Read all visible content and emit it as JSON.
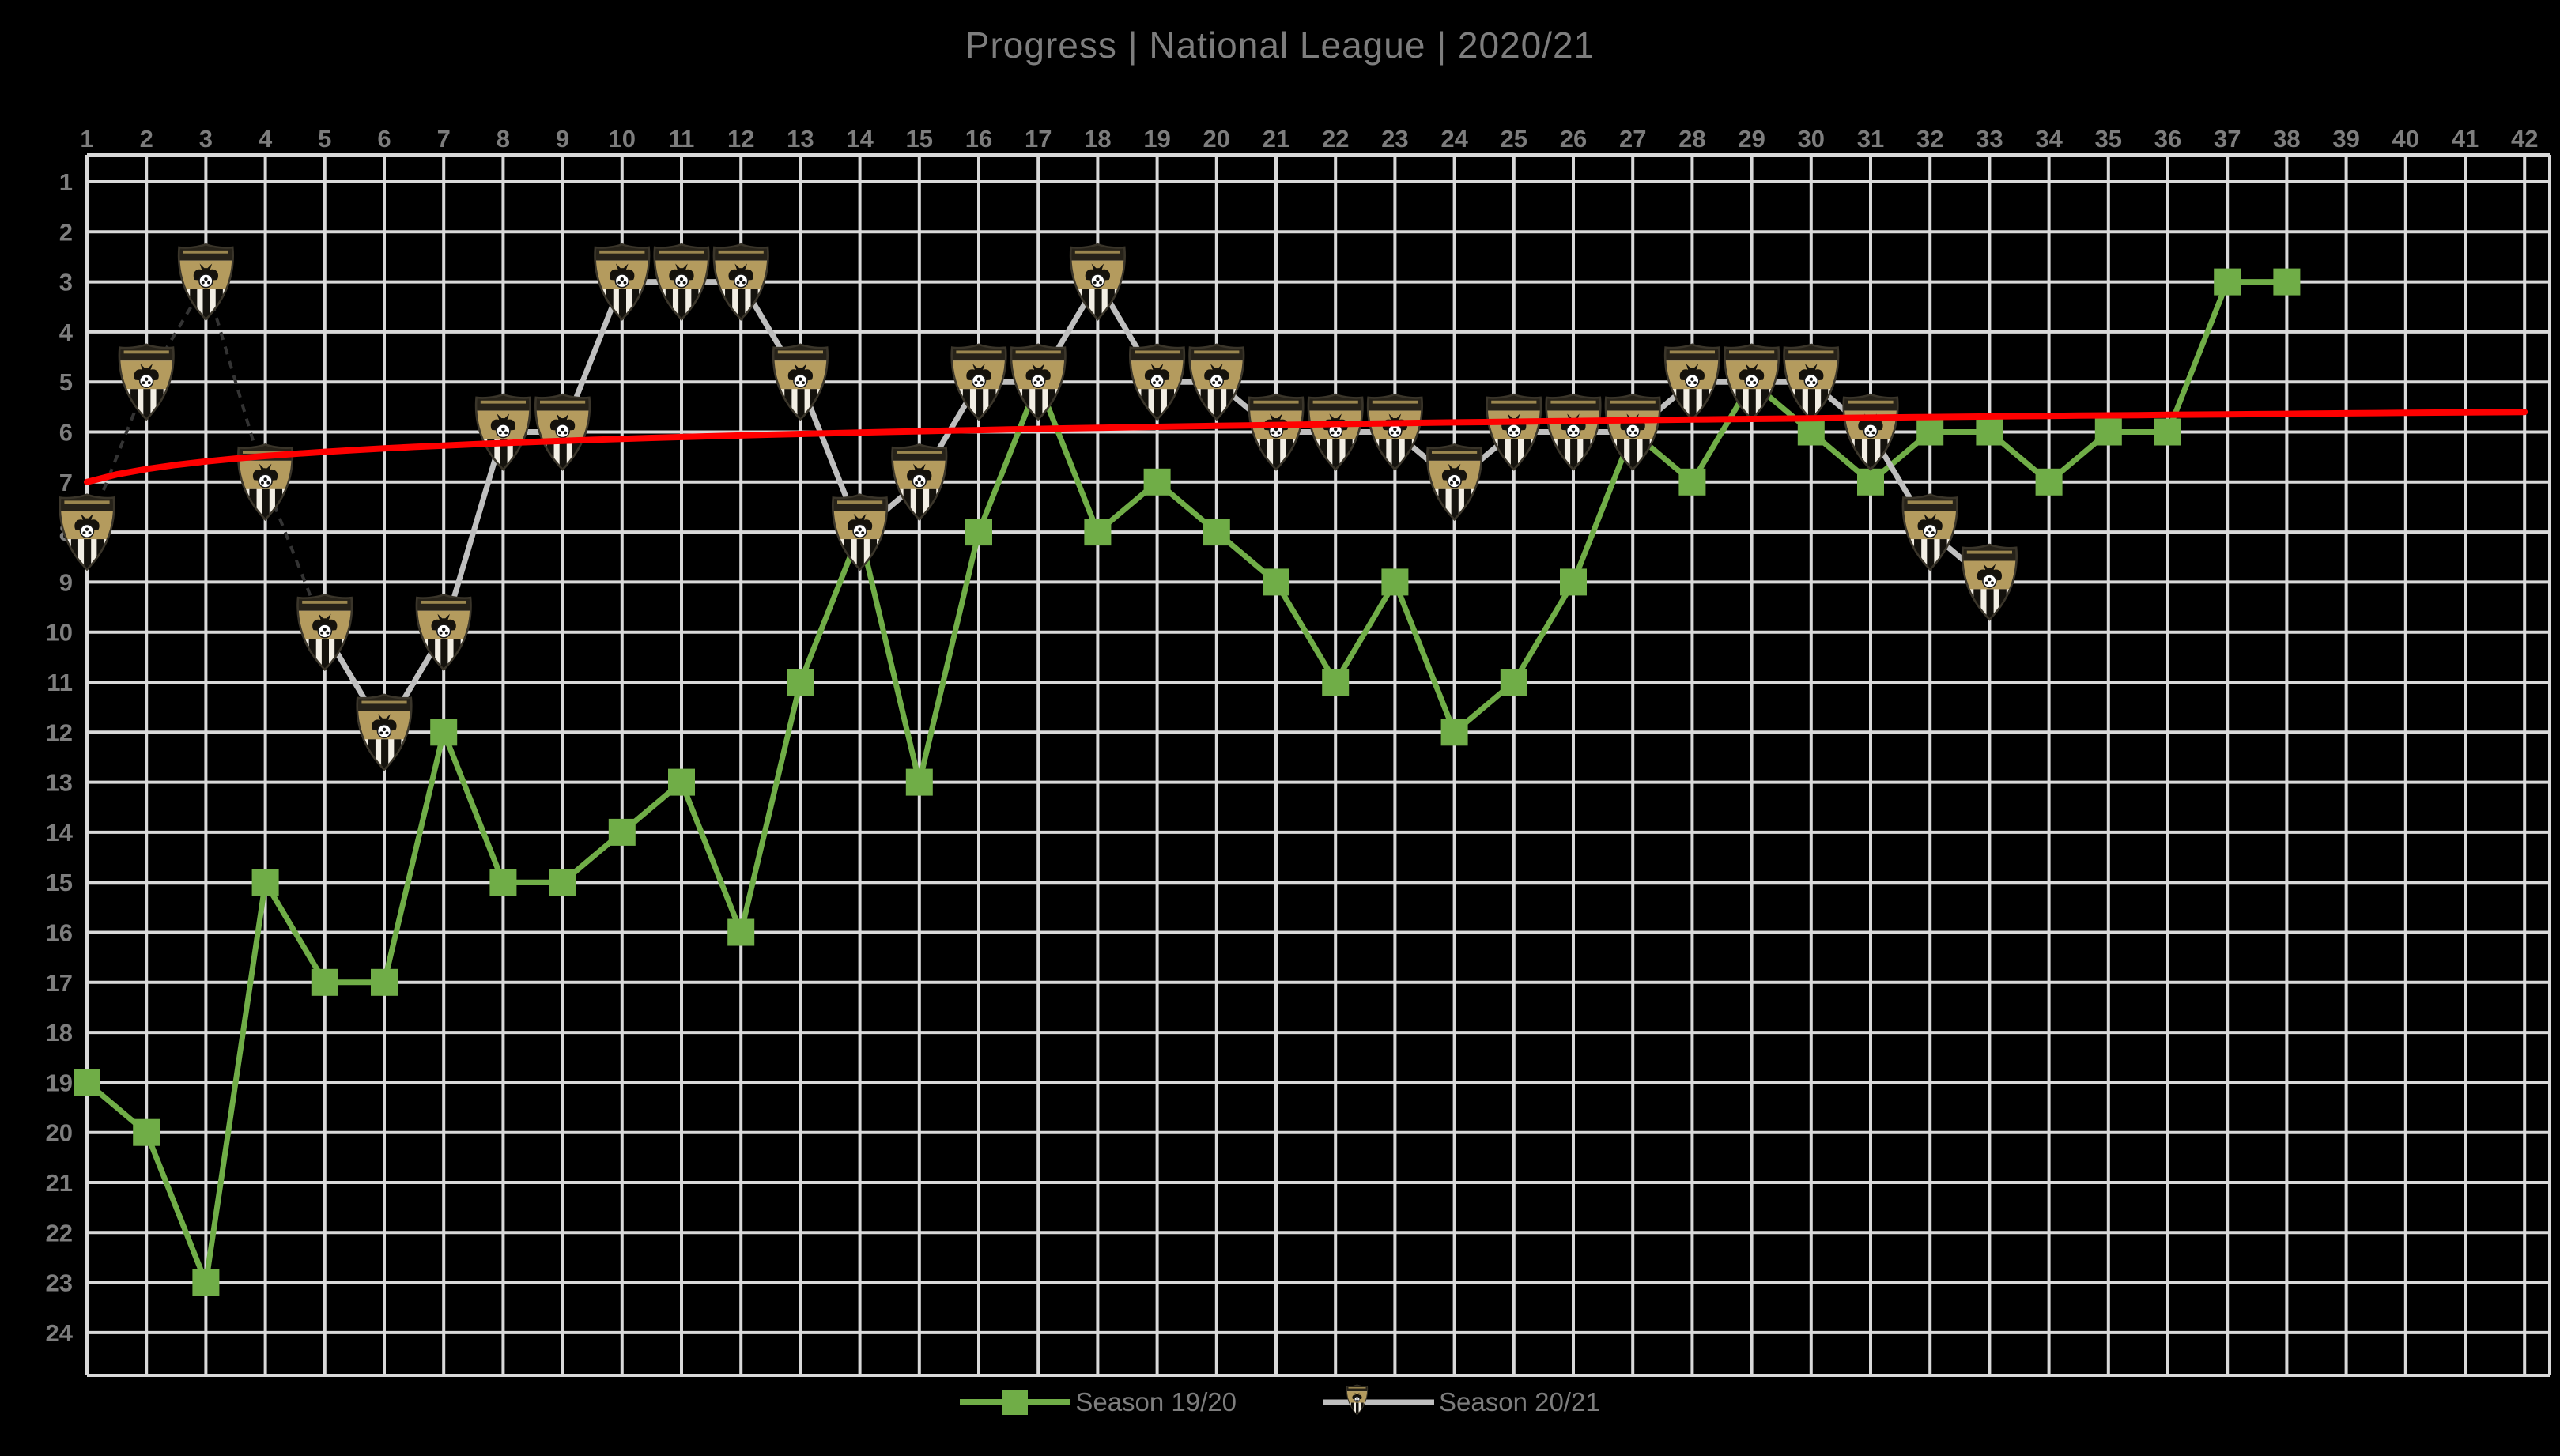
{
  "title": "Progress | National League | 2020/21",
  "chart_data": {
    "type": "line",
    "title": "Progress | National League | 2020/21",
    "x_axis": {
      "position": "top",
      "min": 1,
      "max": 42,
      "ticks": [
        "1",
        "2",
        "3",
        "4",
        "5",
        "6",
        "7",
        "8",
        "9",
        "10",
        "11",
        "12",
        "13",
        "14",
        "15",
        "16",
        "17",
        "18",
        "19",
        "20",
        "21",
        "22",
        "23",
        "24",
        "25",
        "26",
        "27",
        "28",
        "29",
        "30",
        "31",
        "32",
        "33",
        "34",
        "35",
        "36",
        "37",
        "38",
        "39",
        "40",
        "41",
        "42"
      ]
    },
    "y_axis": {
      "min": 1,
      "max": 24,
      "inverted": true,
      "ticks": [
        "1",
        "2",
        "3",
        "4",
        "5",
        "6",
        "7",
        "8",
        "9",
        "10",
        "11",
        "12",
        "13",
        "14",
        "15",
        "16",
        "17",
        "18",
        "19",
        "20",
        "21",
        "22",
        "23",
        "24"
      ]
    },
    "grid": true,
    "legend_position": "bottom",
    "series": [
      {
        "name": "Season 19/20",
        "marker": "square",
        "color": "#70AD47",
        "x_start": 1,
        "values": [
          19,
          20,
          23,
          15,
          17,
          17,
          12,
          15,
          15,
          14,
          13,
          16,
          11,
          8,
          13,
          8,
          5,
          8,
          7,
          8,
          9,
          11,
          9,
          12,
          11,
          9,
          6,
          7,
          5,
          6,
          7,
          6,
          6,
          7,
          6,
          6,
          3,
          3
        ]
      },
      {
        "name": "Season 20/21",
        "marker": "club-badge",
        "line_color": "#BFBFBF",
        "early_segment_color": "#333333",
        "early_dark_dashed_segments_through_match": 5,
        "x_start": 1,
        "values": [
          8,
          5,
          3,
          7,
          10,
          12,
          10,
          6,
          6,
          3,
          3,
          3,
          5,
          8,
          7,
          5,
          5,
          3,
          5,
          5,
          6,
          6,
          6,
          7,
          6,
          6,
          6,
          5,
          5,
          5,
          6,
          8,
          9
        ]
      }
    ],
    "trendline": {
      "type": "logarithmic",
      "color": "#FF0000",
      "value_at_x1": 7.0,
      "value_at_x42": 5.6
    }
  },
  "legend": {
    "items": [
      {
        "label": "Season 19/20"
      },
      {
        "label": "Season 20/21"
      }
    ]
  },
  "colors": {
    "background": "#000000",
    "grid": "#D9D9D9",
    "axis_label": "#7d7d7d",
    "title": "#7d7d7d",
    "season_19_20": "#70AD47",
    "season_20_21_line": "#BFBFBF",
    "season_20_21_dark": "#333333",
    "trend": "#FF0000",
    "badge_gold": "#B49B5E"
  }
}
